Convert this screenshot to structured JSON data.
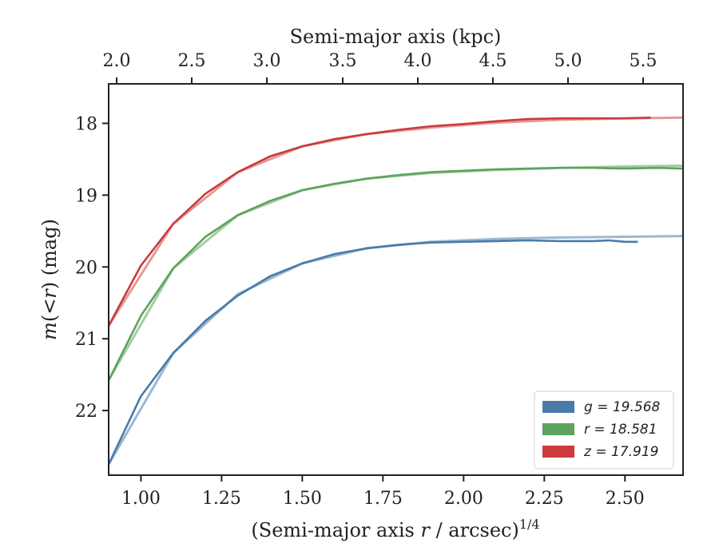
{
  "chart_data": {
    "type": "line",
    "xlabel": "(Semi-major axis r / arcsec)^1/4",
    "ylabel": "m(<r) (mag)",
    "top_xlabel": "Semi-major axis (kpc)",
    "xlim": [
      0.9,
      2.68
    ],
    "ylim": [
      22.9,
      17.45
    ],
    "y_inverted": true,
    "xticks": [
      1.0,
      1.25,
      1.5,
      1.75,
      2.0,
      2.25,
      2.5
    ],
    "xtick_labels": [
      "1.00",
      "1.25",
      "1.50",
      "1.75",
      "2.00",
      "2.25",
      "2.50"
    ],
    "yticks": [
      18,
      19,
      20,
      21,
      22
    ],
    "ytick_labels": [
      "18",
      "19",
      "20",
      "21",
      "22"
    ],
    "top_xticks_kpc": [
      2.0,
      2.5,
      3.0,
      3.5,
      4.0,
      4.5,
      5.0,
      5.5
    ],
    "top_xtick_labels": [
      "2.0",
      "2.5",
      "3.0",
      "3.5",
      "4.0",
      "4.5",
      "5.0",
      "5.5"
    ],
    "legend_position": "lower-right",
    "grid": false,
    "series": [
      {
        "name": "g = 19.568",
        "label_var": "g",
        "label_val": "19.568",
        "color": "#4a7aa8",
        "model_color": "#8fb0cf",
        "x": [
          0.9,
          1.0,
          1.1,
          1.2,
          1.3,
          1.4,
          1.5,
          1.6,
          1.7,
          1.8,
          1.9,
          2.0,
          2.1,
          2.2,
          2.3,
          2.4,
          2.45,
          2.5,
          2.54
        ],
        "y": [
          22.75,
          21.8,
          21.2,
          20.75,
          20.4,
          20.13,
          19.95,
          19.82,
          19.74,
          19.69,
          19.66,
          19.65,
          19.64,
          19.63,
          19.64,
          19.64,
          19.63,
          19.65,
          19.65
        ],
        "model_x": [
          0.9,
          1.1,
          1.3,
          1.5,
          1.7,
          1.9,
          2.1,
          2.3,
          2.5,
          2.68
        ],
        "model_y": [
          22.75,
          21.2,
          20.38,
          19.95,
          19.74,
          19.65,
          19.61,
          19.59,
          19.58,
          19.57
        ]
      },
      {
        "name": "r = 18.581",
        "label_var": "r",
        "label_val": "18.581",
        "color": "#5da35d",
        "model_color": "#9cc79c",
        "x": [
          0.9,
          1.0,
          1.1,
          1.2,
          1.3,
          1.4,
          1.5,
          1.6,
          1.7,
          1.8,
          1.9,
          2.0,
          2.1,
          2.2,
          2.3,
          2.4,
          2.5,
          2.6,
          2.68
        ],
        "y": [
          21.58,
          20.68,
          20.02,
          19.58,
          19.28,
          19.08,
          18.93,
          18.84,
          18.77,
          18.72,
          18.68,
          18.66,
          18.64,
          18.63,
          18.62,
          18.62,
          18.63,
          18.62,
          18.63
        ],
        "model_x": [
          0.9,
          1.1,
          1.3,
          1.5,
          1.7,
          1.9,
          2.1,
          2.3,
          2.5,
          2.68
        ],
        "model_y": [
          21.58,
          20.02,
          19.28,
          18.93,
          18.77,
          18.69,
          18.65,
          18.62,
          18.6,
          18.59
        ]
      },
      {
        "name": "z = 17.919",
        "label_var": "z",
        "label_val": "17.919",
        "color": "#cc3b3b",
        "model_color": "#e08f8f",
        "x": [
          0.9,
          1.0,
          1.1,
          1.2,
          1.3,
          1.4,
          1.5,
          1.6,
          1.7,
          1.8,
          1.9,
          2.0,
          2.1,
          2.2,
          2.3,
          2.4,
          2.5,
          2.58
        ],
        "y": [
          20.82,
          19.98,
          19.4,
          18.98,
          18.68,
          18.46,
          18.32,
          18.22,
          18.15,
          18.09,
          18.04,
          18.01,
          17.97,
          17.94,
          17.93,
          17.93,
          17.93,
          17.92
        ],
        "model_x": [
          0.9,
          1.1,
          1.3,
          1.5,
          1.7,
          1.9,
          2.1,
          2.3,
          2.5,
          2.68
        ],
        "model_y": [
          20.82,
          19.4,
          18.68,
          18.32,
          18.15,
          18.06,
          17.99,
          17.95,
          17.93,
          17.92
        ]
      }
    ]
  }
}
